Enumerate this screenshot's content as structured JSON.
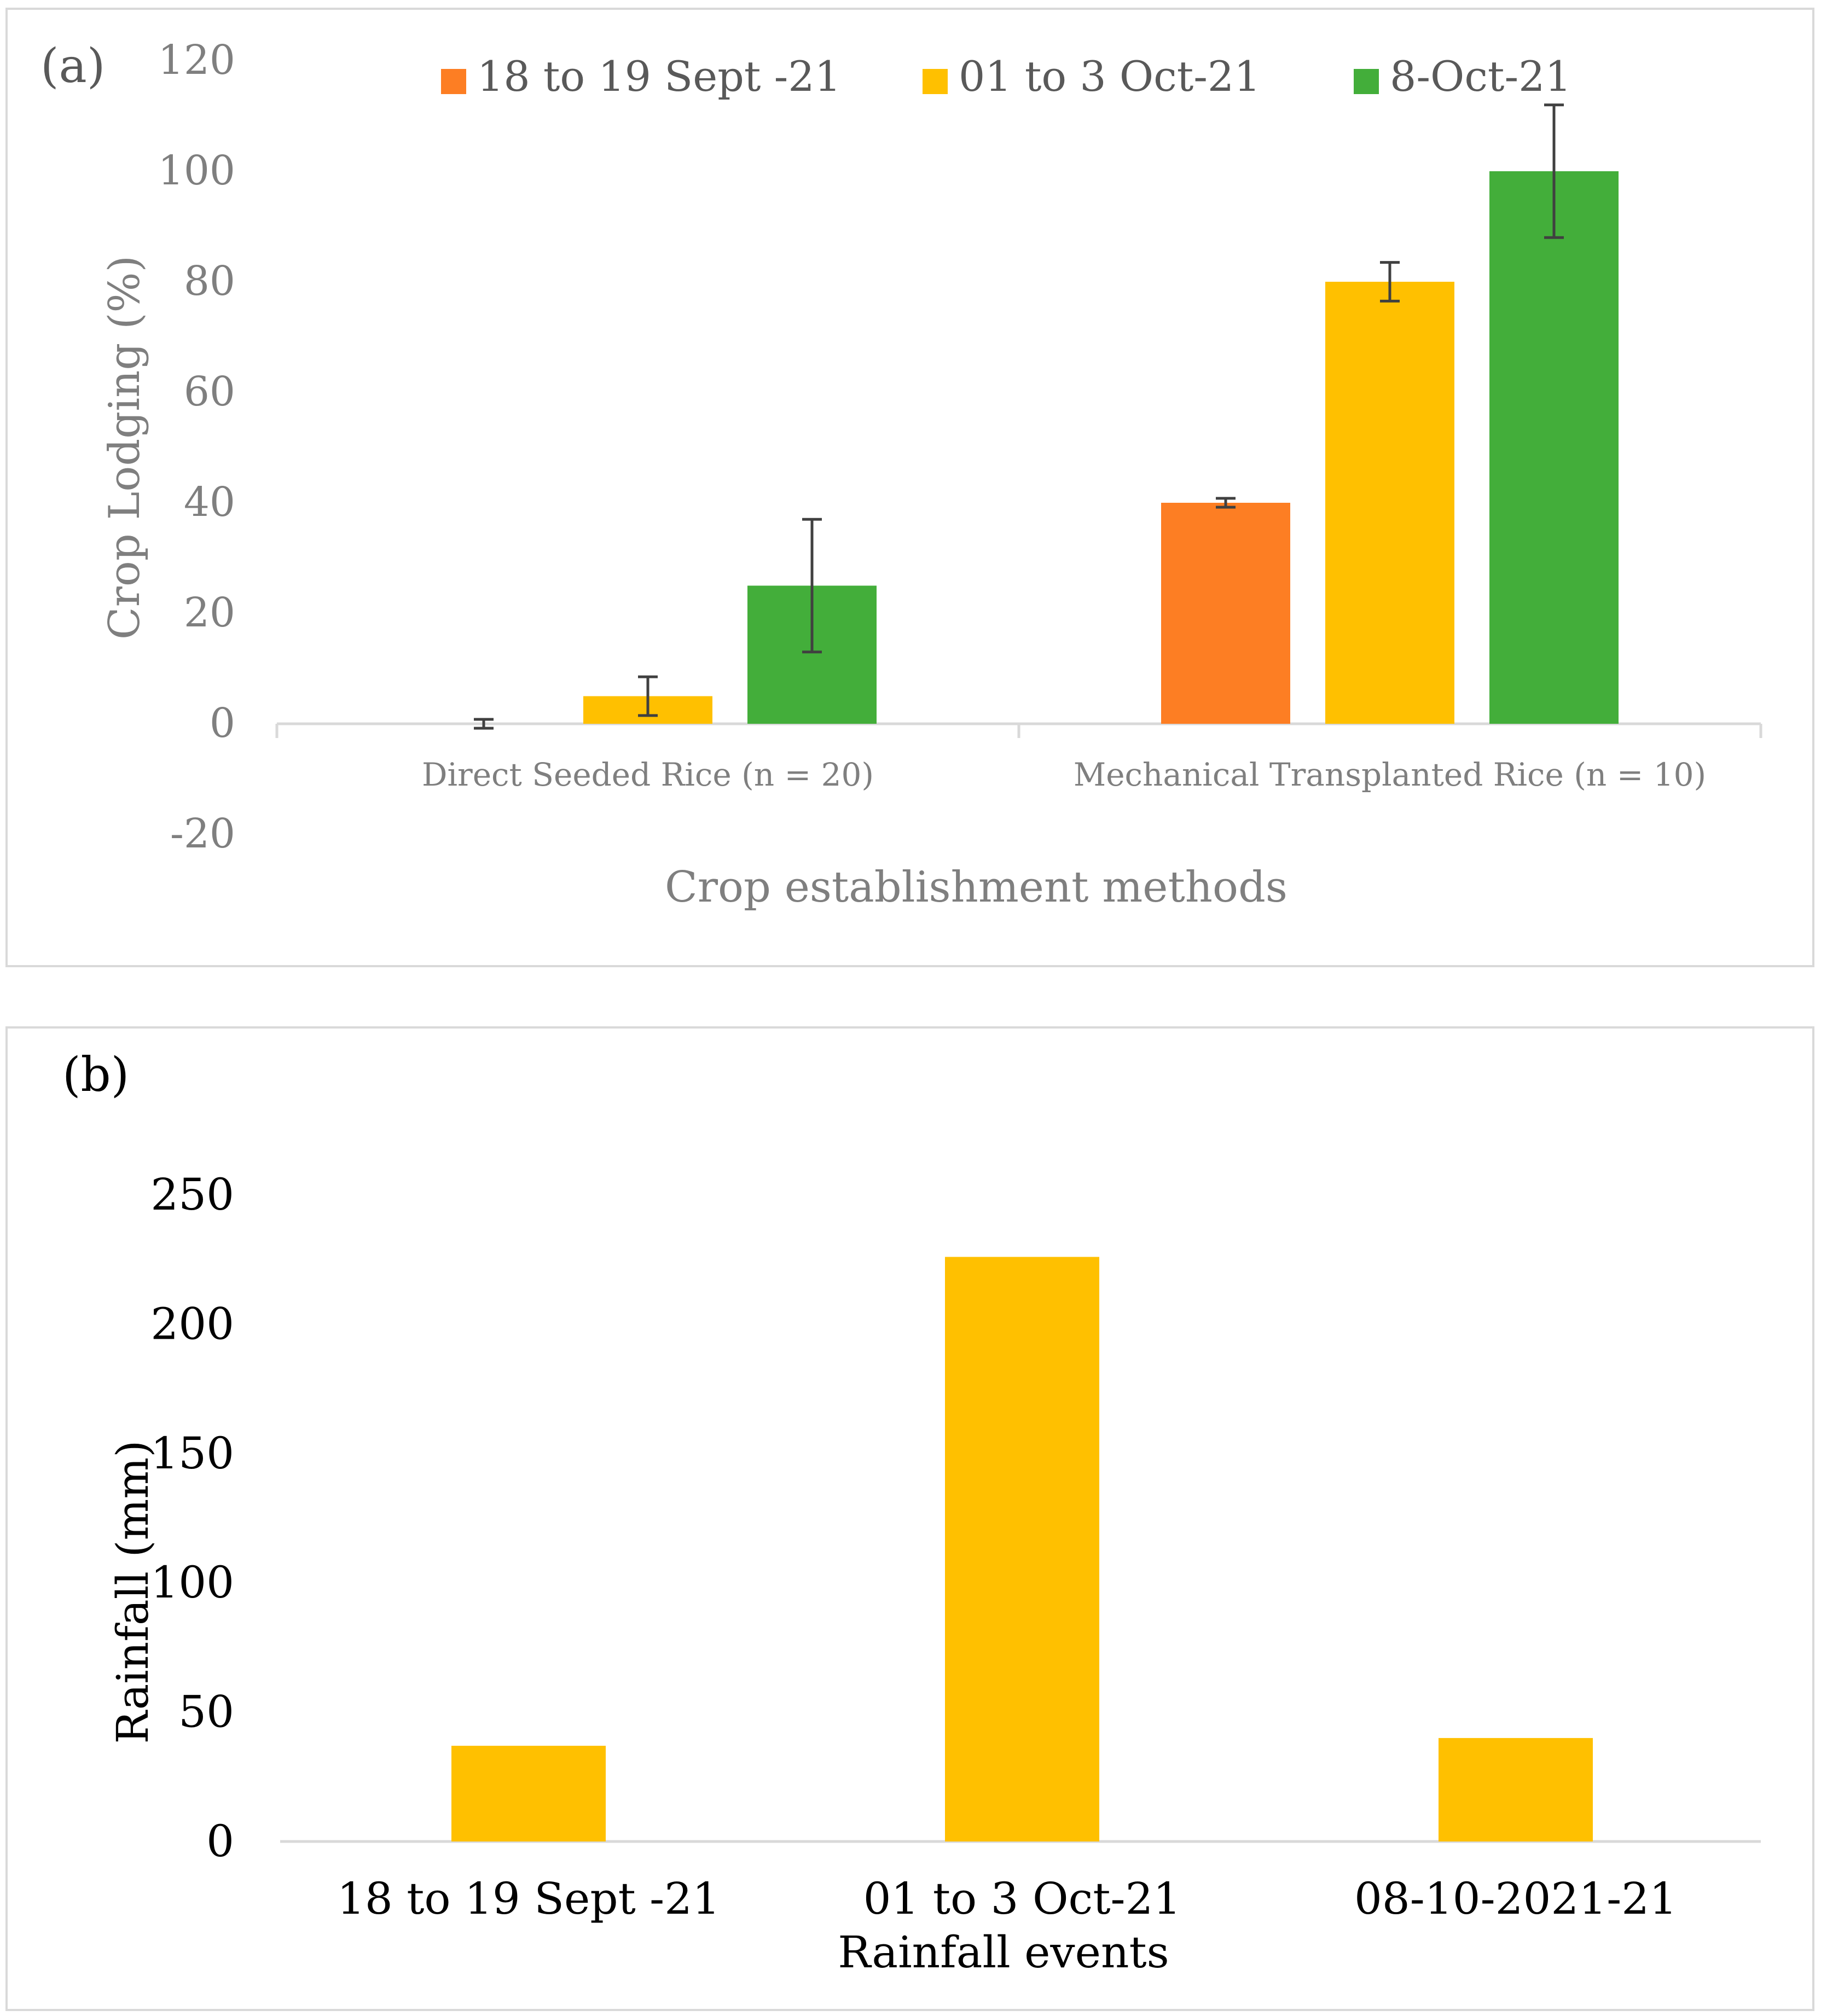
{
  "chart_data": [
    {
      "panel_label": "(a)",
      "type": "bar",
      "title": "",
      "xlabel": "Crop establishment methods",
      "ylabel": "Crop Lodging (%)",
      "ylim": [
        -20,
        120
      ],
      "yticks": [
        -20,
        0,
        20,
        40,
        60,
        80,
        100,
        120
      ],
      "categories": [
        "Direct Seeded Rice (n = 20)",
        "Mechanical Transplanted Rice (n = 10)"
      ],
      "legend_position": "top",
      "series": [
        {
          "name": "18 to 19 Sept -21",
          "color": "#fd7e23",
          "values": [
            0,
            40
          ],
          "errors": [
            0.8,
            0.8
          ]
        },
        {
          "name": "01 to 3 Oct-21",
          "color": "#ffc000",
          "values": [
            5,
            80
          ],
          "errors": [
            3.5,
            3.5
          ]
        },
        {
          "name": "8-Oct-21",
          "color": "#43ae3a",
          "values": [
            25,
            100
          ],
          "errors": [
            12,
            12
          ]
        }
      ]
    },
    {
      "panel_label": "(b)",
      "type": "bar",
      "title": "",
      "xlabel": "Rainfall events",
      "ylabel": "Rainfall (mm)",
      "ylim": [
        0,
        250
      ],
      "yticks": [
        0,
        50,
        100,
        150,
        200,
        250
      ],
      "categories": [
        "18 to 19 Sept -21",
        "01 to 3 Oct-21",
        "08-10-2021-21"
      ],
      "series": [
        {
          "name": "Rainfall",
          "color": "#ffc000",
          "values": [
            37,
            226,
            40
          ]
        }
      ]
    }
  ]
}
